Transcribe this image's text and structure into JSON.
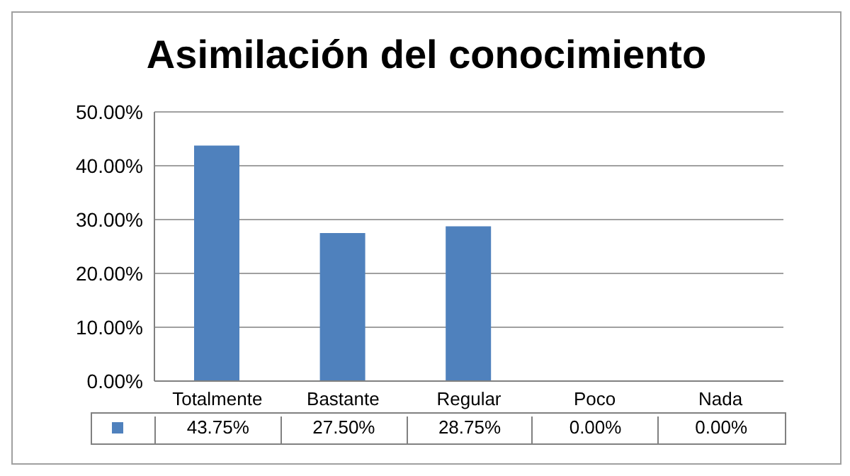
{
  "chart_data": {
    "type": "bar",
    "title": "Asimilación del conocimiento",
    "categories": [
      "Totalmente",
      "Bastante",
      "Regular",
      "Poco",
      "Nada"
    ],
    "values": [
      43.75,
      27.5,
      28.75,
      0,
      0
    ],
    "value_labels": [
      "43.75%",
      "27.50%",
      "28.75%",
      "0.00%",
      "0.00%"
    ],
    "color": "#4f81bd",
    "ylim": [
      0,
      50
    ],
    "yticks": [
      {
        "value": 0,
        "label": "0.00%"
      },
      {
        "value": 10,
        "label": "10.00%"
      },
      {
        "value": 20,
        "label": "20.00%"
      },
      {
        "value": 30,
        "label": "30.00%"
      },
      {
        "value": 40,
        "label": "40.00%"
      },
      {
        "value": 50,
        "label": "50.00%"
      }
    ],
    "grid": "y"
  }
}
